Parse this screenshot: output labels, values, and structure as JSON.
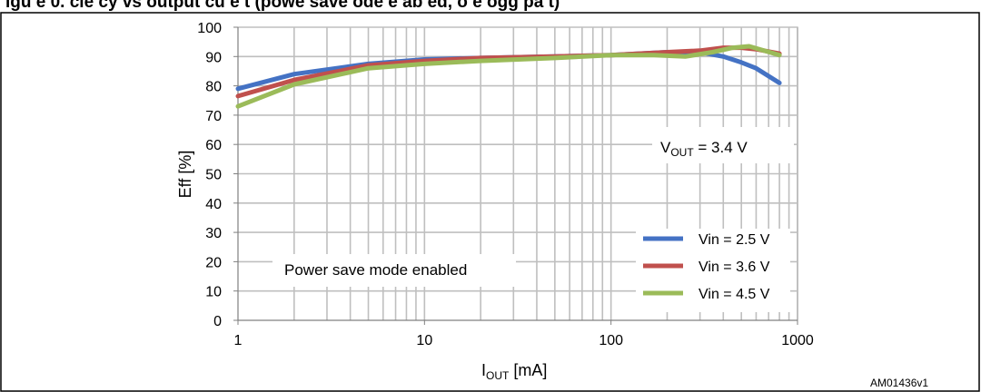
{
  "header": {
    "text": "igu e  0. cie cy vs output cu e t (powe save ode e ab ed, o e ogg pa t)"
  },
  "caption": "AM01436v1",
  "colors": {
    "series_2_5": "#4472c4",
    "series_3_6": "#c0504d",
    "series_4_5": "#9bbb59",
    "grid": "#bfbfbf",
    "border": "#000000"
  },
  "chart_data": {
    "type": "line",
    "xscale": "log",
    "xlim": [
      1,
      1000
    ],
    "ylim": [
      0,
      100
    ],
    "grid": true,
    "legend_position": "bottom-right",
    "xlabel": {
      "main": "I",
      "sub": "OUT",
      "unit": " [mA]"
    },
    "ylabel": "Eff  [%]",
    "x_ticks": [
      1,
      10,
      100,
      1000
    ],
    "x_tick_labels": [
      "1",
      "10",
      "100",
      "1000"
    ],
    "y_ticks": [
      0,
      10,
      20,
      30,
      40,
      50,
      60,
      70,
      80,
      90,
      100
    ],
    "y_tick_labels": [
      "0",
      "10",
      "20",
      "30",
      "40",
      "50",
      "60",
      "70",
      "80",
      "90",
      "100"
    ],
    "annotations": {
      "vout": {
        "main": "V",
        "sub": "OUT",
        "rest": " = 3.4 V"
      },
      "mode": "Power save mode enabled"
    },
    "series": [
      {
        "name": "Vin = 2.5 V",
        "color": "#4472c4",
        "x": [
          1,
          2,
          5,
          10,
          20,
          50,
          100,
          200,
          300,
          400,
          500,
          600,
          800
        ],
        "y": [
          79,
          84,
          87.5,
          89,
          89.5,
          90,
          90.5,
          91.5,
          91.5,
          90,
          88,
          86,
          81
        ]
      },
      {
        "name": "Vin = 3.6 V",
        "color": "#c0504d",
        "x": [
          1,
          2,
          5,
          10,
          20,
          50,
          100,
          200,
          300,
          400,
          500,
          600,
          800
        ],
        "y": [
          76.5,
          82,
          87,
          88.5,
          89.5,
          90,
          90.5,
          91.5,
          92,
          93,
          93,
          92.5,
          91
        ]
      },
      {
        "name": "Vin = 4.5 V",
        "color": "#9bbb59",
        "x": [
          1,
          2,
          5,
          10,
          20,
          50,
          100,
          170,
          250,
          350,
          450,
          550,
          800
        ],
        "y": [
          73,
          80.5,
          86,
          87.5,
          88.5,
          89.5,
          90.5,
          90.5,
          90,
          91.5,
          93,
          93.5,
          90.5
        ]
      }
    ]
  }
}
